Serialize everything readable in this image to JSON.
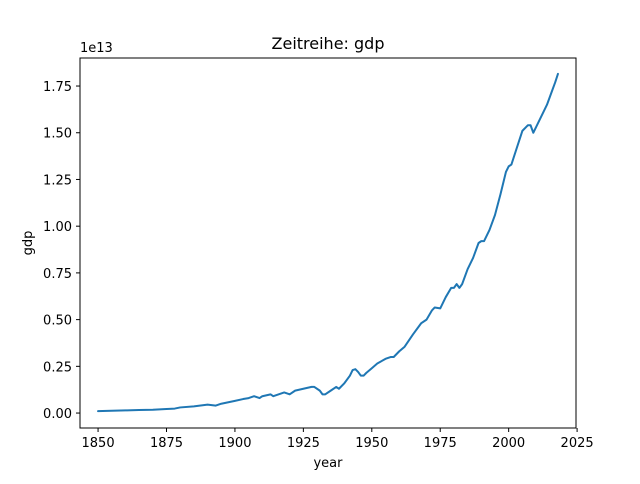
{
  "chart_data": {
    "type": "line",
    "title": "Zeitreihe: gdp",
    "xlabel": "year",
    "ylabel": "gdp",
    "y_offset_label": "1e13",
    "xlim": [
      1843.4,
      2024.6
    ],
    "ylim": [
      -0.08,
      1.9
    ],
    "y_scale_note": "values in units of 1e13",
    "x_ticks": [
      1850,
      1875,
      1900,
      1925,
      1950,
      1975,
      2000,
      2025
    ],
    "x_tick_labels": [
      "1850",
      "1875",
      "1900",
      "1925",
      "1950",
      "1975",
      "2000",
      "2025"
    ],
    "y_ticks": [
      0.0,
      0.25,
      0.5,
      0.75,
      1.0,
      1.25,
      1.5,
      1.75
    ],
    "y_tick_labels": [
      "0.00",
      "0.25",
      "0.50",
      "0.75",
      "1.00",
      "1.25",
      "1.50",
      "1.75"
    ],
    "grid": false,
    "legend": "none",
    "line_color": "#1f77b4",
    "series": [
      {
        "x": [
          1850,
          1855,
          1860,
          1865,
          1870,
          1875,
          1878,
          1880,
          1885,
          1890,
          1893,
          1895,
          1900,
          1903,
          1905,
          1907,
          1909,
          1910,
          1913,
          1914,
          1916,
          1918,
          1920,
          1922,
          1925,
          1928,
          1929,
          1931,
          1932,
          1933,
          1935,
          1937,
          1938,
          1940,
          1942,
          1943,
          1944,
          1945,
          1946,
          1947,
          1948,
          1950,
          1952,
          1955,
          1957,
          1958,
          1960,
          1962,
          1965,
          1968,
          1970,
          1972,
          1973,
          1975,
          1977,
          1979,
          1980,
          1981,
          1982,
          1983,
          1985,
          1987,
          1989,
          1990,
          1991,
          1993,
          1995,
          1997,
          1999,
          2000,
          2001,
          2003,
          2005,
          2007,
          2008,
          2009,
          2010,
          2012,
          2014,
          2016,
          2017,
          2018
        ],
        "y": [
          0.01,
          0.012,
          0.014,
          0.016,
          0.018,
          0.022,
          0.024,
          0.03,
          0.036,
          0.045,
          0.04,
          0.05,
          0.065,
          0.075,
          0.08,
          0.09,
          0.08,
          0.09,
          0.1,
          0.09,
          0.1,
          0.11,
          0.1,
          0.12,
          0.13,
          0.14,
          0.14,
          0.12,
          0.1,
          0.1,
          0.12,
          0.14,
          0.13,
          0.16,
          0.2,
          0.23,
          0.235,
          0.22,
          0.2,
          0.2,
          0.215,
          0.24,
          0.265,
          0.29,
          0.3,
          0.3,
          0.33,
          0.355,
          0.42,
          0.48,
          0.5,
          0.55,
          0.565,
          0.56,
          0.62,
          0.67,
          0.67,
          0.69,
          0.67,
          0.69,
          0.77,
          0.83,
          0.91,
          0.92,
          0.92,
          0.98,
          1.06,
          1.17,
          1.29,
          1.32,
          1.33,
          1.42,
          1.51,
          1.54,
          1.54,
          1.5,
          1.53,
          1.59,
          1.65,
          1.73,
          1.77,
          1.815
        ]
      }
    ]
  }
}
